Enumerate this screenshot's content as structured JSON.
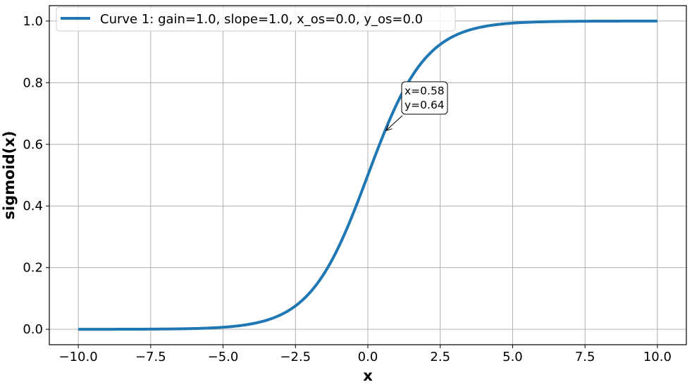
{
  "chart_data": {
    "type": "line",
    "title": "",
    "xlabel": "x",
    "ylabel": "sigmoid(x)",
    "xlim": [
      -11.0,
      11.0
    ],
    "ylim": [
      -0.05,
      1.05
    ],
    "grid": true,
    "legend_position": "top-left",
    "x_ticks": [
      -10.0,
      -7.5,
      -5.0,
      -2.5,
      0.0,
      2.5,
      5.0,
      7.5,
      10.0
    ],
    "x_tick_labels": [
      "−10.0",
      "−7.5",
      "−5.0",
      "−2.5",
      "0.0",
      "2.5",
      "5.0",
      "7.5",
      "10.0"
    ],
    "y_ticks": [
      0.0,
      0.2,
      0.4,
      0.6,
      0.8,
      1.0
    ],
    "y_tick_labels": [
      "0.0",
      "0.2",
      "0.4",
      "0.6",
      "0.8",
      "1.0"
    ],
    "series": [
      {
        "name": "Curve 1: gain=1.0, slope=1.0, x_os=0.0, y_os=0.0",
        "color": "#1f77b4",
        "x": [
          -10.0,
          -9.0,
          -8.0,
          -7.0,
          -6.0,
          -5.0,
          -4.5,
          -4.0,
          -3.5,
          -3.0,
          -2.5,
          -2.0,
          -1.5,
          -1.0,
          -0.5,
          0.0,
          0.5,
          1.0,
          1.5,
          2.0,
          2.5,
          3.0,
          3.5,
          4.0,
          4.5,
          5.0,
          6.0,
          7.0,
          8.0,
          9.0,
          10.0
        ],
        "y": [
          5e-05,
          0.00012,
          0.00034,
          0.00091,
          0.00247,
          0.00669,
          0.01099,
          0.01799,
          0.02931,
          0.04743,
          0.07586,
          0.1192,
          0.18243,
          0.26894,
          0.37754,
          0.5,
          0.62246,
          0.73106,
          0.81757,
          0.8808,
          0.92414,
          0.95257,
          0.97069,
          0.98201,
          0.98901,
          0.99331,
          0.99753,
          0.99909,
          0.99966,
          0.99988,
          0.99995
        ]
      }
    ],
    "annotations": [
      {
        "x": 0.58,
        "y": 0.64,
        "lines": [
          "x=0.58",
          "y=0.64"
        ]
      }
    ]
  }
}
